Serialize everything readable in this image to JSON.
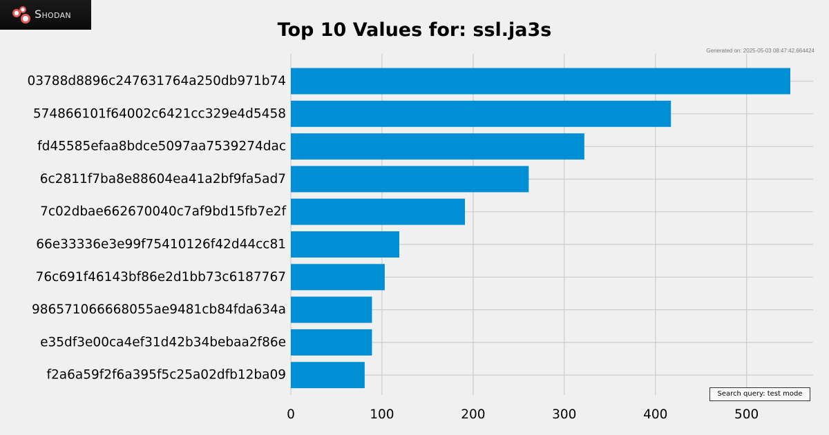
{
  "brand": {
    "name": "Shodan",
    "icon": "shodan-logo-icon"
  },
  "generated_text": "Generated on: 2025-05-03 08:47:42.664424",
  "search_query_text": "Search query: test mode",
  "colors": {
    "background": "#f0f0f0",
    "bar": "#008fd5",
    "grid": "#cbcbcb",
    "logo_bg": "#111111",
    "logo_accent": "#d9534f"
  },
  "chart_data": {
    "type": "bar",
    "orientation": "horizontal",
    "title": "Top 10 Values for: ssl.ja3s",
    "xlabel": "",
    "ylabel": "",
    "categories": [
      "03788d8896c247631764a250db971b74",
      "574866101f64002c6421cc329e4d5458",
      "fd45585efaa8bdce5097aa7539274dac",
      "6c2811f7ba8e88604ea41a2bf9fa5ad7",
      "7c02dbae662670040c7af9bd15fb7e2f",
      "66e33336e3e99f75410126f42d44cc81",
      "76c691f46143bf86e2d1bb73c6187767",
      "986571066668055ae9481cb84fda634a",
      "e35df3e00ca4ef31d42b34bebaa2f86e",
      "f2a6a59f2f6a395f5c25a02dfb12ba09"
    ],
    "values": [
      548,
      417,
      322,
      261,
      191,
      119,
      103,
      89,
      89,
      81
    ],
    "xticks": [
      0,
      100,
      200,
      300,
      400,
      500
    ],
    "xlim": [
      0,
      573
    ],
    "grid": true
  }
}
